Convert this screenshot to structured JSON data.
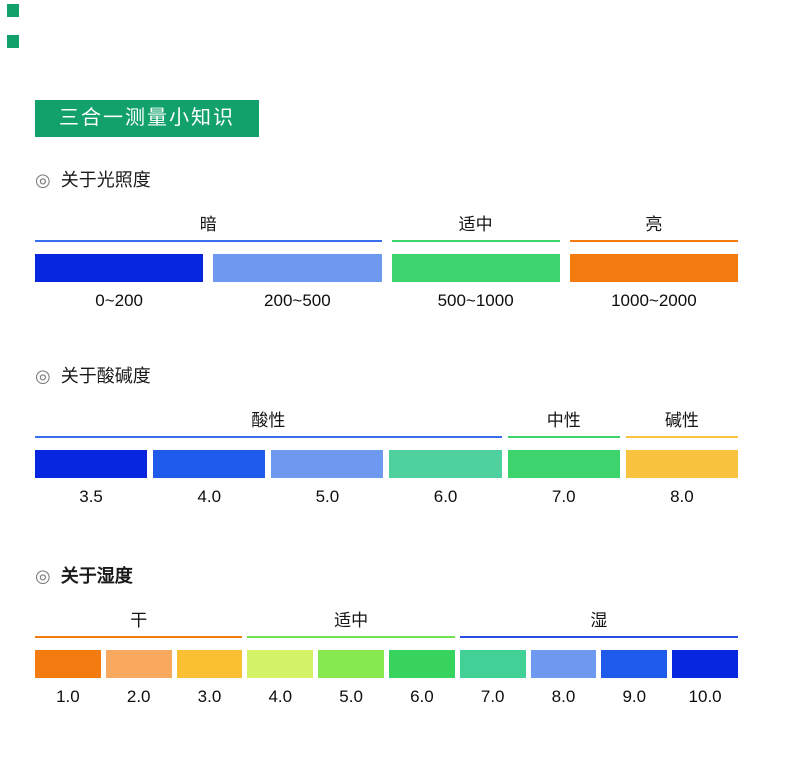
{
  "header": {
    "title": "三合一测量小知识",
    "background": "#12a06b",
    "text_color": "#ffffff"
  },
  "decor": {
    "color": "#12a06b"
  },
  "sections": [
    {
      "bullet": "◎",
      "title": "关于光照度",
      "groups": [
        {
          "label": "暗",
          "span": 2,
          "line_color": "#3a6cee"
        },
        {
          "label": "适中",
          "span": 1,
          "line_color": "#3ed46d"
        },
        {
          "label": "亮",
          "span": 1,
          "line_color": "#f47b0f"
        }
      ],
      "blocks": [
        {
          "value": "0~200",
          "color": "#0726df"
        },
        {
          "value": "200~500",
          "color": "#6d99f0"
        },
        {
          "value": "500~1000",
          "color": "#3ed46d"
        },
        {
          "value": "1000~2000",
          "color": "#f47b0f"
        }
      ]
    },
    {
      "bullet": "◎",
      "title": "关于酸碱度",
      "groups": [
        {
          "label": "酸性",
          "span": 4,
          "line_color": "#3a6cee"
        },
        {
          "label": "中性",
          "span": 1,
          "line_color": "#3ed46d"
        },
        {
          "label": "碱性",
          "span": 1,
          "line_color": "#fac33f"
        }
      ],
      "blocks": [
        {
          "value": "3.5",
          "color": "#0726df"
        },
        {
          "value": "4.0",
          "color": "#1f5beb"
        },
        {
          "value": "5.0",
          "color": "#6d99f0"
        },
        {
          "value": "6.0",
          "color": "#4fd19f"
        },
        {
          "value": "7.0",
          "color": "#3ed46d"
        },
        {
          "value": "8.0",
          "color": "#fac33f"
        }
      ]
    },
    {
      "bullet": "◎",
      "title": "关于湿度",
      "groups": [
        {
          "label": "干",
          "span": 3,
          "line_color": "#f47b0f"
        },
        {
          "label": "适中",
          "span": 3,
          "line_color": "#6fe24c"
        },
        {
          "label": "湿",
          "span": 4,
          "line_color": "#2a4de4"
        }
      ],
      "blocks": [
        {
          "value": "1.0",
          "color": "#f47b0f"
        },
        {
          "value": "2.0",
          "color": "#f8a95e"
        },
        {
          "value": "3.0",
          "color": "#fbc032"
        },
        {
          "value": "4.0",
          "color": "#d3f266"
        },
        {
          "value": "5.0",
          "color": "#85e94f"
        },
        {
          "value": "6.0",
          "color": "#37d35c"
        },
        {
          "value": "7.0",
          "color": "#43d096"
        },
        {
          "value": "8.0",
          "color": "#6d99f0"
        },
        {
          "value": "9.0",
          "color": "#1f5beb"
        },
        {
          "value": "10.0",
          "color": "#0726df"
        }
      ]
    }
  ]
}
